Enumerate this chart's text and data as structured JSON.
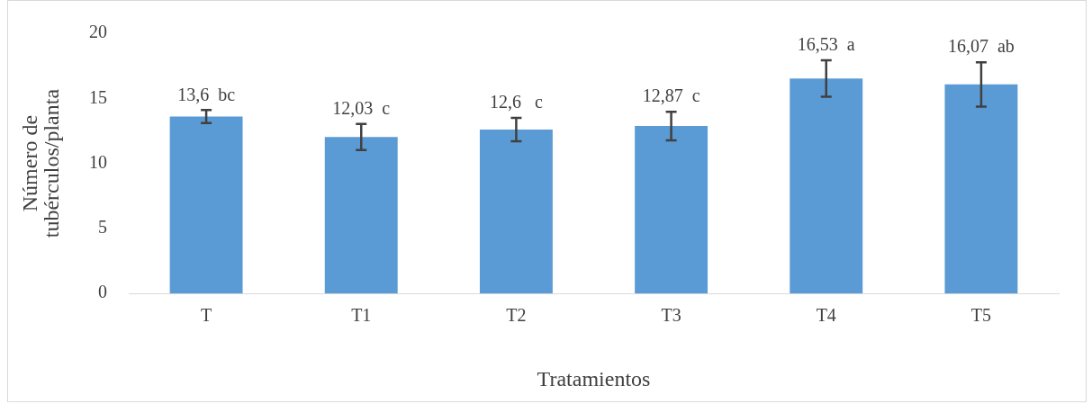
{
  "chart_data": {
    "type": "bar",
    "xlabel": "Tratamientos",
    "ylabel": "Número de tubérculos/planta",
    "categories": [
      "T",
      "T1",
      "T2",
      "T3",
      "T4",
      "T5"
    ],
    "values": [
      13.6,
      12.03,
      12.6,
      12.87,
      16.53,
      16.07
    ],
    "errors": [
      0.5,
      1.0,
      0.9,
      1.1,
      1.4,
      1.7
    ],
    "value_labels": [
      "13,6  bc",
      "12,03  c",
      "12,6   c",
      "12,87  c",
      "16,53  a",
      "16,07  ab"
    ],
    "color": "#5b9bd5",
    "ylim": [
      0,
      20
    ],
    "yticks": [
      0,
      5,
      10,
      15,
      20
    ],
    "grid": false,
    "legend": false
  }
}
